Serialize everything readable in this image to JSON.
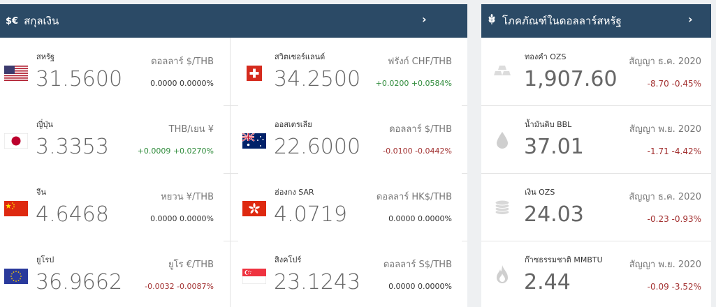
{
  "currency": {
    "title": "สกุลเงิน",
    "icon_text": "$€",
    "items": [
      {
        "name": "สหรัฐ",
        "price": "31.5600",
        "unit": "ดอลลาร์ $/THB",
        "change": "0.0000 0.0000%",
        "trend": "flat",
        "flag": "us-flag-icon"
      },
      {
        "name": "ญี่ปุ่น",
        "price": "3.3353",
        "unit": "THB/เยน ¥",
        "change": "+0.0009 +0.0270%",
        "trend": "up",
        "flag": "japan-flag-icon"
      },
      {
        "name": "จีน",
        "price": "4.6468",
        "unit": "หยวน ¥/THB",
        "change": "0.0000 0.0000%",
        "trend": "flat",
        "flag": "china-flag-icon"
      },
      {
        "name": "ยูโรป",
        "price": "36.9662",
        "unit": "ยูโร €/THB",
        "change": "-0.0032 -0.0087%",
        "trend": "down",
        "flag": "eu-flag-icon"
      },
      {
        "name": "สวิตเซอร์แลนด์",
        "price": "34.2500",
        "unit": "ฟรังก์ CHF/THB",
        "change": "+0.0200 +0.0584%",
        "trend": "up",
        "flag": "swiss-flag-icon"
      },
      {
        "name": "ออสเตรเลีย",
        "price": "22.6000",
        "unit": "ดอลลาร์ $/THB",
        "change": "-0.0100 -0.0442%",
        "trend": "down",
        "flag": "australia-flag-icon"
      },
      {
        "name": "ฮ่องกง SAR",
        "price": "4.0719",
        "unit": "ดอลลาร์ HK$/THB",
        "change": "0.0000 0.0000%",
        "trend": "flat",
        "flag": "hongkong-flag-icon"
      },
      {
        "name": "สิงคโปร์",
        "price": "23.1243",
        "unit": "ดอลลาร์ S$/THB",
        "change": "0.0000 0.0000%",
        "trend": "flat",
        "flag": "singapore-flag-icon"
      }
    ]
  },
  "commodities": {
    "title": "โภคภัณฑ์ในดอลลาร์สหรัฐ",
    "items": [
      {
        "name": "ทองคำ OZS",
        "price": "1,907.60",
        "unit": "สัญญา ธ.ค. 2020",
        "change": "-8.70 -0.45%",
        "icon": "gold-bars-icon"
      },
      {
        "name": "น้ำมันดิบ BBL",
        "price": "37.01",
        "unit": "สัญญา พ.ย. 2020",
        "change": "-1.71 -4.42%",
        "icon": "oil-drop-icon"
      },
      {
        "name": "เงิน OZS",
        "price": "24.03",
        "unit": "สัญญา ธ.ค. 2020",
        "change": "-0.23 -0.93%",
        "icon": "silver-coins-icon"
      },
      {
        "name": "ก๊าซธรรมชาติ MMBTU",
        "price": "2.44",
        "unit": "สัญญา พ.ย. 2020",
        "change": "-0.09 -3.52%",
        "icon": "gas-flame-icon"
      }
    ]
  },
  "colors": {
    "header": "#2b4a66",
    "up": "#2e8b3a",
    "down": "#a23030"
  }
}
